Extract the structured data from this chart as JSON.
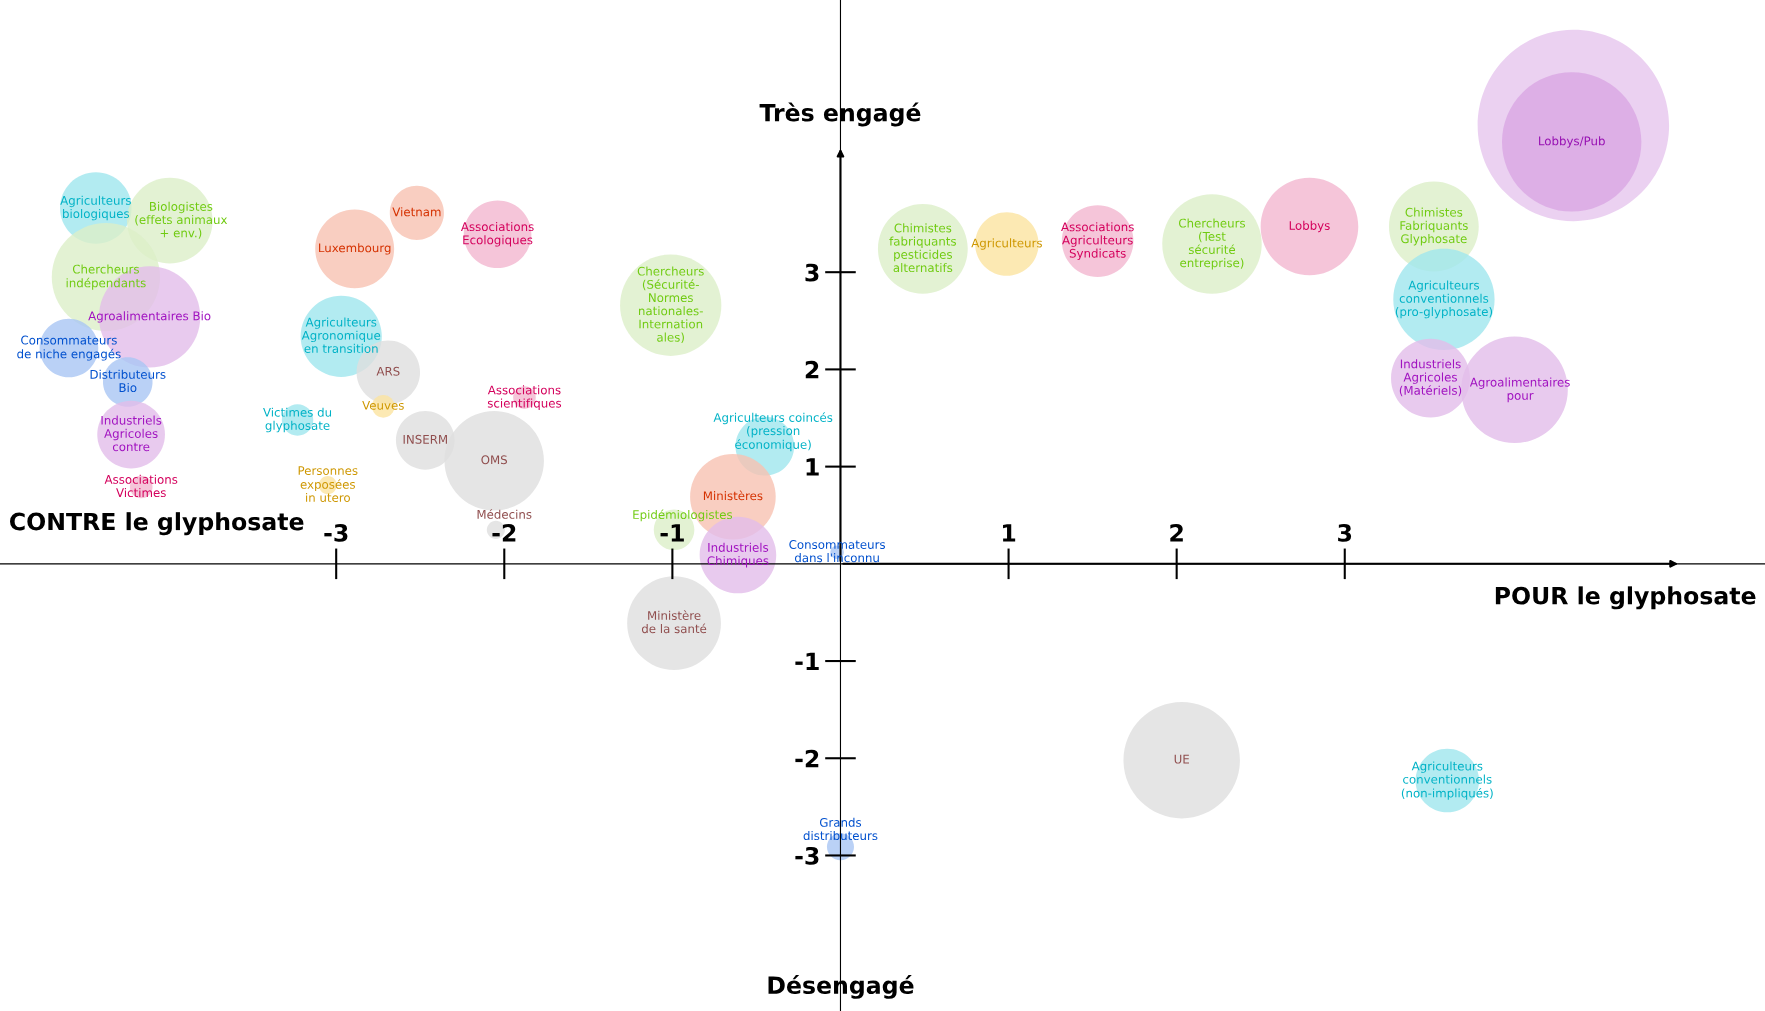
{
  "chart_data": {
    "type": "bubble",
    "xlabel": "POUR le glyphosate",
    "ylabel": "Très engagé",
    "annotations": [
      "CONTRE le glyphosate",
      "Désengagé"
    ],
    "xlim": [
      -5,
      5.5
    ],
    "ylim": [
      -4.6,
      5.8
    ],
    "xticks": [
      -3,
      -2,
      -1,
      1,
      2,
      3
    ],
    "yticks": [
      -3,
      -2,
      -1,
      1,
      2,
      3
    ],
    "grid": false,
    "legend": false,
    "marker": "circle",
    "series": [
      {
        "name": "Agriculteurs\nbiologiques",
        "color": "#9fe6ee",
        "x": [
          -4.43
        ],
        "values": [
          3.66
        ],
        "sizes": [
          0.14
        ]
      },
      {
        "name": "Biologistes\n(effets animaux\n+ env.)",
        "color": "#dcefc8",
        "x": [
          -3.99
        ],
        "values": [
          3.53
        ],
        "sizes": [
          0.2
        ]
      },
      {
        "name": "Chercheurs\nindépendants",
        "color": "#dcefc8",
        "x": [
          -4.37
        ],
        "values": [
          2.95
        ],
        "sizes": [
          0.32
        ]
      },
      {
        "name": "Agroalimentaires Bio",
        "color": "#e2bdea",
        "x": [
          -4.11
        ],
        "values": [
          2.54
        ],
        "sizes": [
          0.28
        ]
      },
      {
        "name": "Consommateurs\nde niche engagés",
        "color": "#a9c6f4",
        "x": [
          -4.59
        ],
        "values": [
          2.22
        ],
        "sizes": [
          0.094
        ]
      },
      {
        "name": "Distributeurs\nBio",
        "color": "#a9c6f4",
        "x": [
          -4.24
        ],
        "values": [
          1.87
        ],
        "sizes": [
          0.067
        ]
      },
      {
        "name": "Industriels\nAgricoles\ncontre",
        "color": "#e2bdea",
        "x": [
          -4.22
        ],
        "values": [
          1.33
        ],
        "sizes": [
          0.125
        ]
      },
      {
        "name": "Associations\nVictimes",
        "color": "#f2b6d0",
        "x": [
          -4.16
        ],
        "values": [
          0.79
        ],
        "sizes": [
          0.014
        ]
      },
      {
        "name": "Luxembourg",
        "color": "#f8c2b2",
        "x": [
          -2.89
        ],
        "values": [
          3.24
        ],
        "sizes": [
          0.17
        ]
      },
      {
        "name": "Vietnam",
        "color": "#f8c2b2",
        "x": [
          -2.52
        ],
        "values": [
          3.61
        ],
        "sizes": [
          0.08
        ]
      },
      {
        "name": "Associations\nEcologiques",
        "color": "#f2b6d0",
        "x": [
          -2.04
        ],
        "values": [
          3.39
        ],
        "sizes": [
          0.125
        ]
      },
      {
        "name": "Agriculteurs\nAgronomique\nen transition",
        "color": "#9fe6ee",
        "x": [
          -2.97
        ],
        "values": [
          2.34
        ],
        "sizes": [
          0.18
        ]
      },
      {
        "name": "ARS",
        "color": "#dedede",
        "x": [
          -2.69
        ],
        "values": [
          1.97
        ],
        "sizes": [
          0.11
        ]
      },
      {
        "name": "Veuves",
        "color": "#fbe3a0",
        "x": [
          -2.72
        ],
        "values": [
          1.62
        ],
        "sizes": [
          0.014
        ]
      },
      {
        "name": "Victimes du\nglyphosate",
        "color": "#9fe6ee",
        "x": [
          -3.23
        ],
        "values": [
          1.48
        ],
        "sizes": [
          0.027
        ]
      },
      {
        "name": "Personnes\nexposées\nin utero",
        "color": "#fbe3a0",
        "x": [
          -3.05
        ],
        "values": [
          0.81
        ],
        "sizes": [
          0.009
        ]
      },
      {
        "name": "INSERM",
        "color": "#dedede",
        "x": [
          -2.47
        ],
        "values": [
          1.27
        ],
        "sizes": [
          0.094
        ]
      },
      {
        "name": "OMS",
        "color": "#dedede",
        "x": [
          -2.06
        ],
        "values": [
          1.06
        ],
        "sizes": [
          0.27
        ]
      },
      {
        "name": "Associations\nscientifiques",
        "color": "#f2b6d0",
        "x": [
          -1.88
        ],
        "values": [
          1.71
        ],
        "sizes": [
          0.014
        ]
      },
      {
        "name": "Médecins",
        "color": "#dedede",
        "x": [
          -2.05
        ],
        "values": [
          0.35
        ],
        "sizes": [
          0.009
        ]
      },
      {
        "name": "Chercheurs\n(Sécurité-\nNormes\nnationales-\nInternation\nales)",
        "color": "#dcefc8",
        "x": [
          -1.01
        ],
        "values": [
          2.66
        ],
        "sizes": [
          0.28
        ]
      },
      {
        "name": "Agriculteurs coincés\n(pression\néconomique)",
        "color": "#9fe6ee",
        "x": [
          -0.45
        ],
        "values": [
          1.21
        ],
        "sizes": [
          0.094
        ]
      },
      {
        "name": "Ministères",
        "color": "#f8c2b2",
        "x": [
          -0.64
        ],
        "values": [
          0.69
        ],
        "sizes": [
          0.2
        ]
      },
      {
        "name": "Epidémiologistes",
        "color": "#dcefc8",
        "x": [
          -0.99
        ],
        "values": [
          0.35
        ],
        "sizes": [
          0.045
        ]
      },
      {
        "name": "Industriels\nChimiques",
        "color": "#e2bdea",
        "x": [
          -0.61
        ],
        "values": [
          0.09
        ],
        "sizes": [
          0.16
        ]
      },
      {
        "name": "Ministère\nde la santé",
        "color": "#dedede",
        "x": [
          -0.99
        ],
        "values": [
          -0.61
        ],
        "sizes": [
          0.24
        ]
      },
      {
        "name": "Consommateurs\ndans l'inconnu",
        "color": "#a9c6f4",
        "x": [
          -0.02
        ],
        "values": [
          0.12
        ],
        "sizes": [
          0.005
        ]
      },
      {
        "name": "Grands\ndistributeurs",
        "color": "#a9c6f4",
        "x": [
          0.0
        ],
        "values": [
          -2.91
        ],
        "sizes": [
          0.02
        ]
      },
      {
        "name": "UE",
        "color": "#dedede",
        "x": [
          2.03
        ],
        "values": [
          -2.02
        ],
        "sizes": [
          0.37
        ]
      },
      {
        "name": "Agriculteurs\nconventionnels\n(non-impliqués)",
        "color": "#9fe6ee",
        "x": [
          3.61
        ],
        "values": [
          -2.23
        ],
        "sizes": [
          0.11
        ]
      },
      {
        "name": "Chimistes\nfabriquants\npesticides\nalternatifs",
        "color": "#dcefc8",
        "x": [
          0.49
        ],
        "values": [
          3.24
        ],
        "sizes": [
          0.22
        ]
      },
      {
        "name": "Agriculteurs",
        "color": "#fbe3a0",
        "x": [
          0.99
        ],
        "values": [
          3.29
        ],
        "sizes": [
          0.11
        ]
      },
      {
        "name": "Associations\nAgriculteurs\nSyndicats",
        "color": "#f2b6d0",
        "x": [
          1.53
        ],
        "values": [
          3.32
        ],
        "sizes": [
          0.14
        ]
      },
      {
        "name": "Chercheurs\n(Test\nsécurité\nentreprise)",
        "color": "#dcefc8",
        "x": [
          2.21
        ],
        "values": [
          3.29
        ],
        "sizes": [
          0.27
        ]
      },
      {
        "name": "Lobbys",
        "color": "#f2b6d0",
        "x": [
          2.79
        ],
        "values": [
          3.47
        ],
        "sizes": [
          0.26
        ]
      },
      {
        "color": "#e6c6ee",
        "x": [
          4.36
        ],
        "values": [
          4.51
        ],
        "sizes": [
          1.0
        ]
      },
      {
        "name": "Lobbys/Pub",
        "color": "#d9a6e3",
        "x": [
          4.35
        ],
        "values": [
          4.34
        ],
        "sizes": [
          0.53
        ]
      },
      {
        "name": "Chimistes\nFabriquants\nGlyphosate",
        "color": "#dcefc8",
        "x": [
          3.53
        ],
        "values": [
          3.47
        ],
        "sizes": [
          0.22
        ]
      },
      {
        "name": "Agriculteurs\nconventionnels\n(pro-glyphosate)",
        "color": "#9fe6ee",
        "x": [
          3.59
        ],
        "values": [
          2.72
        ],
        "sizes": [
          0.28
        ]
      },
      {
        "name": "Industriels\nAgricoles\n(Matériels)",
        "color": "#e2bdea",
        "x": [
          3.51
        ],
        "values": [
          1.91
        ],
        "sizes": [
          0.17
        ]
      },
      {
        "name": "Agroalimentaires\npour",
        "color": "#e2bdea",
        "x": [
          4.01
        ],
        "values": [
          1.79
        ],
        "sizes": [
          0.31
        ]
      }
    ]
  }
}
